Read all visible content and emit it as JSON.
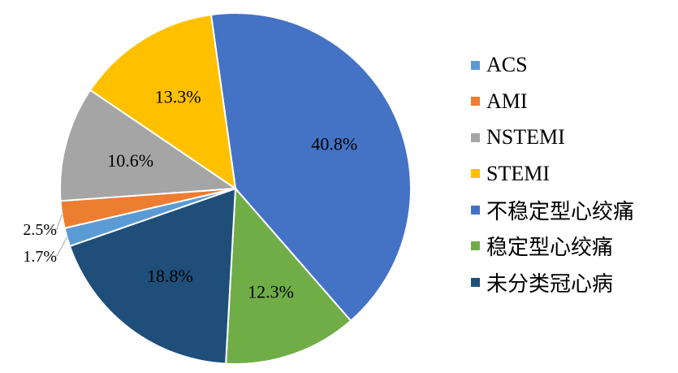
{
  "chart_data": {
    "type": "pie",
    "start_angle_deg": -8,
    "direction": "clockwise",
    "slices": [
      {
        "label": "不稳定型心绞痛",
        "value": 40.8,
        "display": "40.8%",
        "color": "#4472C4",
        "label_placement": "inside"
      },
      {
        "label": "稳定型心绞痛",
        "value": 12.3,
        "display": "12.3%",
        "color": "#70AD47",
        "label_placement": "inside"
      },
      {
        "label": "未分类冠心病",
        "value": 18.8,
        "display": "18.8%",
        "color": "#1F4E79",
        "label_placement": "inside"
      },
      {
        "label": "ACS",
        "value": 1.7,
        "display": "1.7%",
        "color": "#5B9BD5",
        "label_placement": "outside"
      },
      {
        "label": "AMI",
        "value": 2.5,
        "display": "2.5%",
        "color": "#ED7D31",
        "label_placement": "outside"
      },
      {
        "label": "NSTEMI",
        "value": 10.6,
        "display": "10.6%",
        "color": "#A5A5A5",
        "label_placement": "inside"
      },
      {
        "label": "STEMI",
        "value": 13.3,
        "display": "13.3%",
        "color": "#FFC000",
        "label_placement": "inside"
      }
    ],
    "legend": {
      "placement": "right",
      "entries": [
        {
          "label": "ACS",
          "color": "#5B9BD5"
        },
        {
          "label": "AMI",
          "color": "#ED7D31"
        },
        {
          "label": "NSTEMI",
          "color": "#A5A5A5"
        },
        {
          "label": "STEMI",
          "color": "#FFC000"
        },
        {
          "label": "不稳定型心绞痛",
          "color": "#4472C4"
        },
        {
          "label": "稳定型心绞痛",
          "color": "#70AD47"
        },
        {
          "label": "未分类冠心病",
          "color": "#1F4E79"
        }
      ]
    }
  }
}
